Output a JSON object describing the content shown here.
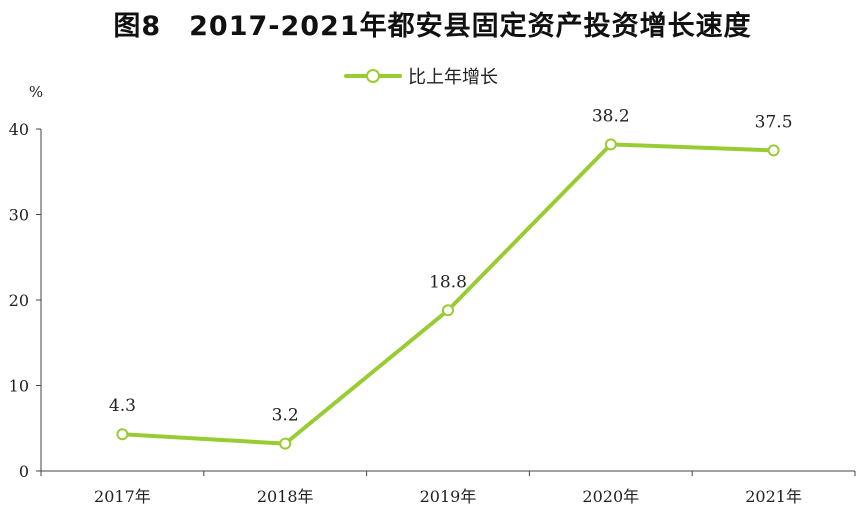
{
  "chart_data": {
    "type": "line",
    "title": "图8　2017-2021年都安县固定资产投资增长速度",
    "ylabel": "%",
    "xlabel": "",
    "categories": [
      "2017年",
      "2018年",
      "2019年",
      "2020年",
      "2021年"
    ],
    "series": [
      {
        "name": "比上年增长",
        "values": [
          4.3,
          3.2,
          18.8,
          38.2,
          37.5
        ],
        "labels": [
          "4.3",
          "3.2",
          "18.8",
          "38.2",
          "37.5"
        ]
      }
    ],
    "ylim": [
      0,
      40
    ],
    "yticks": [
      0,
      10,
      20,
      30,
      40
    ],
    "grid": false,
    "legend": "top-center",
    "colors": {
      "line": "#99CC33",
      "axis": "#444444"
    }
  }
}
